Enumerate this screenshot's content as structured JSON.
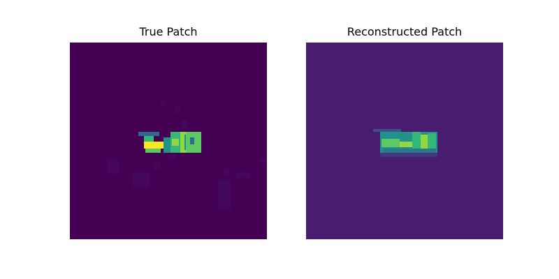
{
  "figure": {
    "panels": [
      {
        "title": "True Patch",
        "colormap": "viridis"
      },
      {
        "title": "Reconstructed Patch",
        "colormap": "viridis"
      }
    ],
    "colors": {
      "true_background": "#440154",
      "reconstructed_background": "#481c6e",
      "viridis_low": "#440154",
      "viridis_mid_low": "#31688e",
      "viridis_mid": "#21918c",
      "viridis_mid_high": "#5ec962",
      "viridis_high": "#fde725"
    }
  }
}
